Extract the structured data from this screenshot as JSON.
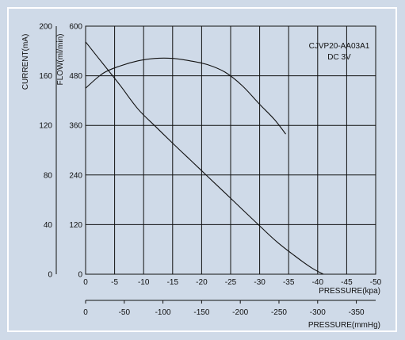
{
  "colors": {
    "panel": "#cfdae8",
    "frame": "#ffffff",
    "grid": "#111111",
    "curve": "#111111"
  },
  "chart_data": {
    "type": "line",
    "annotations": [
      "CJVP20-AA03A1",
      "DC 3V"
    ],
    "x_axis_kpa": {
      "label": "PRESSURE(kpa)",
      "ticks": [
        0,
        -5,
        -10,
        -15,
        -20,
        -25,
        -30,
        -35,
        -40,
        -45,
        -50
      ],
      "tick_labels": [
        "0",
        "-5",
        "-10",
        "-15",
        "-20",
        "-25",
        "-30",
        "-35",
        "-40",
        "-45",
        "-50"
      ],
      "range": [
        0,
        -50
      ]
    },
    "x_axis_mmhg": {
      "label": "PRESSURE(mmHg)",
      "ticks": [
        0,
        -50,
        -100,
        -150,
        -200,
        -250,
        -300,
        -350
      ],
      "tick_labels": [
        "0",
        "-50",
        "-100",
        "-150",
        "-200",
        "-250",
        "-300",
        "-350"
      ]
    },
    "y_axis_flow": {
      "label": "FLOW(ml/min)",
      "ticks": [
        0,
        120,
        240,
        360,
        480,
        600
      ],
      "tick_labels": [
        "0",
        "120",
        "240",
        "360",
        "480",
        "600"
      ],
      "range": [
        0,
        600
      ]
    },
    "y_axis_current": {
      "label": "CURRENT(mA)",
      "ticks": [
        0,
        40,
        80,
        120,
        160,
        200
      ],
      "tick_labels": [
        "0",
        "40",
        "80",
        "120",
        "160",
        "200"
      ],
      "range": [
        0,
        200
      ]
    },
    "grid": true,
    "series": [
      {
        "axis": "flow",
        "x": [
          0,
          -3,
          -6,
          -9,
          -12,
          -15,
          -18,
          -21,
          -24,
          -27,
          -30,
          -33,
          -36,
          -39,
          -41
        ],
        "y": [
          562,
          509,
          456,
          400,
          358,
          317,
          277,
          237,
          197,
          157,
          117,
          78,
          45,
          15,
          0
        ]
      },
      {
        "axis": "current",
        "x": [
          0,
          -3,
          -6,
          -9,
          -12,
          -15,
          -18,
          -21,
          -24,
          -27,
          -30,
          -32.5,
          -34.5
        ],
        "y": [
          150,
          162,
          168,
          172,
          174,
          174,
          172,
          169,
          163,
          152,
          137,
          125,
          113
        ]
      }
    ]
  }
}
